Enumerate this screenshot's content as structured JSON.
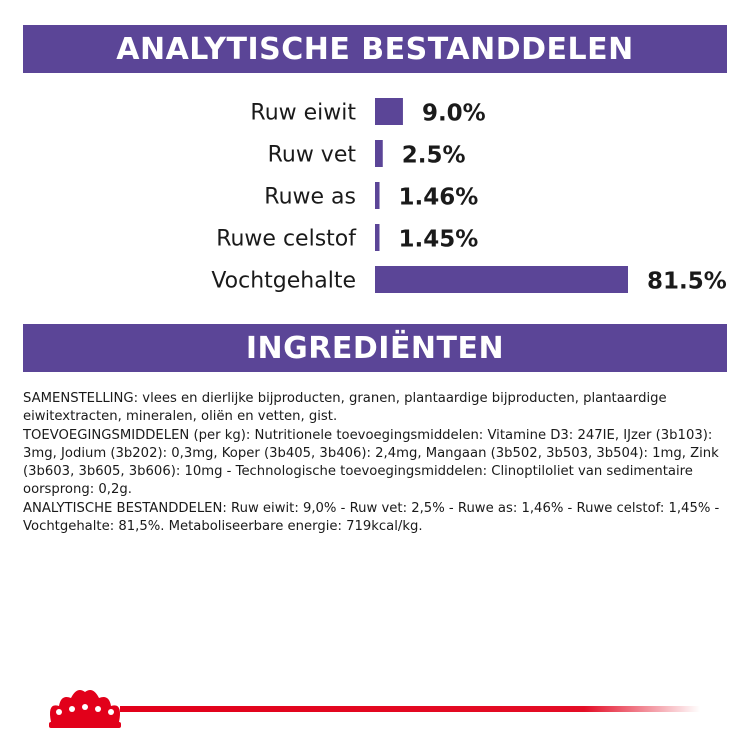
{
  "headers": {
    "analysis": "ANALYTISCHE BESTANDDELEN",
    "ingredients": "INGREDIËNTEN"
  },
  "chart_data": {
    "type": "bar",
    "orientation": "horizontal",
    "categories": [
      "Ruw eiwit",
      "Ruw vet",
      "Ruwe as",
      "Ruwe celstof",
      "Vochtgehalte"
    ],
    "values": [
      9.0,
      2.5,
      1.46,
      1.45,
      81.5
    ],
    "value_labels": [
      "9.0%",
      "2.5%",
      "1.46%",
      "1.45%",
      "81.5%"
    ],
    "unit": "%",
    "bar_color": "#5b4597",
    "title": "",
    "xlabel": "",
    "ylabel": ""
  },
  "ingredients_text": {
    "composition": "SAMENSTELLING: vlees en dierlijke bijproducten, granen, plantaardige bijproducten, plantaardige eiwitextracten, mineralen, oliën en vetten, gist.",
    "additives": "TOEVOEGINGSMIDDELEN (per kg): Nutritionele toevoegingsmiddelen: Vitamine D3: 247IE, IJzer (3b103): 3mg, Jodium (3b202): 0,3mg, Koper (3b405, 3b406): 2,4mg, Mangaan (3b502, 3b503, 3b504): 1mg, Zink (3b603, 3b605, 3b606): 10mg - Technologische toevoegingsmiddelen: Clinoptiloliet van sedimentaire oorsprong: 0,2g.",
    "analysis": "ANALYTISCHE BESTANDDELEN: Ruw eiwit: 9,0% - Ruw vet: 2,5% - Ruwe as: 1,46% - Ruwe celstof: 1,45% - Vochtgehalte: 81,5%. Metaboliseerbare energie: 719kcal/kg."
  },
  "colors": {
    "brand_purple": "#5b4597",
    "brand_red": "#e2001a"
  },
  "footer": {
    "logo_icon": "crown-icon"
  }
}
